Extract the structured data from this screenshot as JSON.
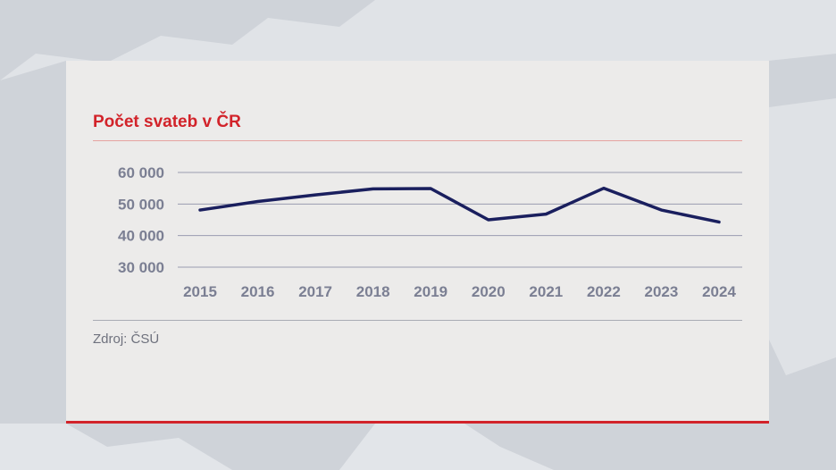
{
  "chart_data": {
    "type": "line",
    "title": "Počet svateb v ČR",
    "xlabel": "",
    "ylabel": "",
    "categories": [
      "2015",
      "2016",
      "2017",
      "2018",
      "2019",
      "2020",
      "2021",
      "2022",
      "2023",
      "2024"
    ],
    "series": [
      {
        "values": [
          48100,
          50800,
          52900,
          54800,
          54900,
          45000,
          46800,
          55000,
          48100,
          44300
        ],
        "color": "#1a1f5e"
      }
    ],
    "ylim": [
      30000,
      60000
    ],
    "yticks": [
      30000,
      40000,
      50000,
      60000
    ],
    "ytick_labels": [
      "30 000",
      "40 000",
      "50 000",
      "60 000"
    ],
    "grid": true,
    "legend": "none"
  },
  "source": "Zdroj: ČSÚ",
  "colors": {
    "accent": "#d2232a",
    "line": "#1a1f5e",
    "grid": "#9a9db0",
    "tick_text": "#7b7f93"
  }
}
